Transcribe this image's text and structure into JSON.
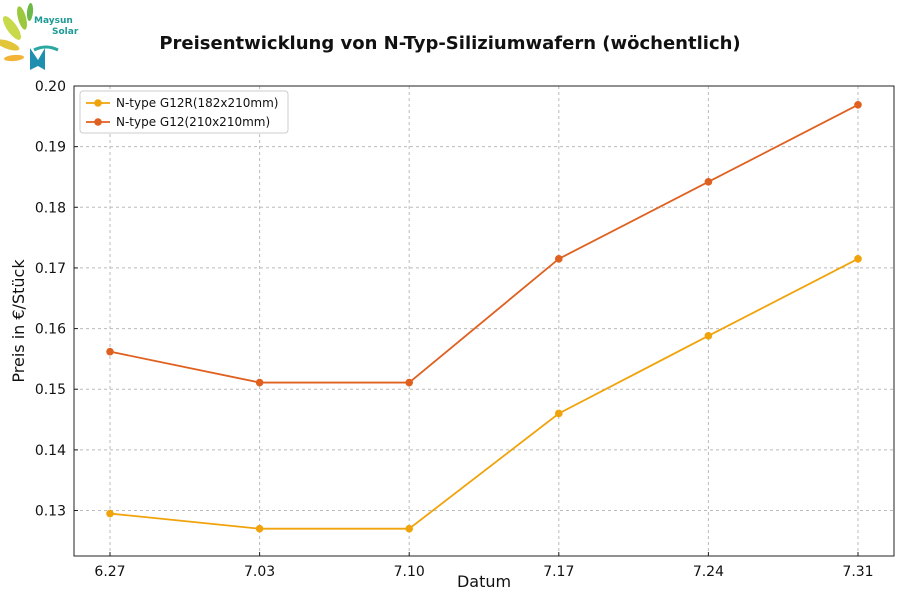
{
  "logo": {
    "line1": "Maysun",
    "line2": "Solar",
    "icon": "maysun-solar-logo"
  },
  "chart_data": {
    "type": "line",
    "title": "Preisentwicklung von N-Typ-Siliziumwafern (wöchentlich)",
    "xlabel": "Datum",
    "ylabel": "Preis in €/Stück",
    "categories": [
      "6.27",
      "7.03",
      "7.10",
      "7.17",
      "7.24",
      "7.31"
    ],
    "ylim": [
      0.1225,
      0.2
    ],
    "yticks": [
      "0.13",
      "0.14",
      "0.15",
      "0.16",
      "0.17",
      "0.18",
      "0.19",
      "0.20"
    ],
    "ytick_values": [
      0.13,
      0.14,
      0.15,
      0.16,
      0.17,
      0.18,
      0.19,
      0.2
    ],
    "grid": true,
    "legend_position": "top-left",
    "series": [
      {
        "name": "N-type G12R(182x210mm)",
        "color": "#f0a30a",
        "values": [
          0.1295,
          0.127,
          0.127,
          0.146,
          0.1588,
          0.1715
        ]
      },
      {
        "name": "N-type G12(210x210mm)",
        "color": "#e0601f",
        "values": [
          0.1562,
          0.1511,
          0.1511,
          0.1715,
          0.1842,
          0.1969
        ]
      }
    ]
  }
}
